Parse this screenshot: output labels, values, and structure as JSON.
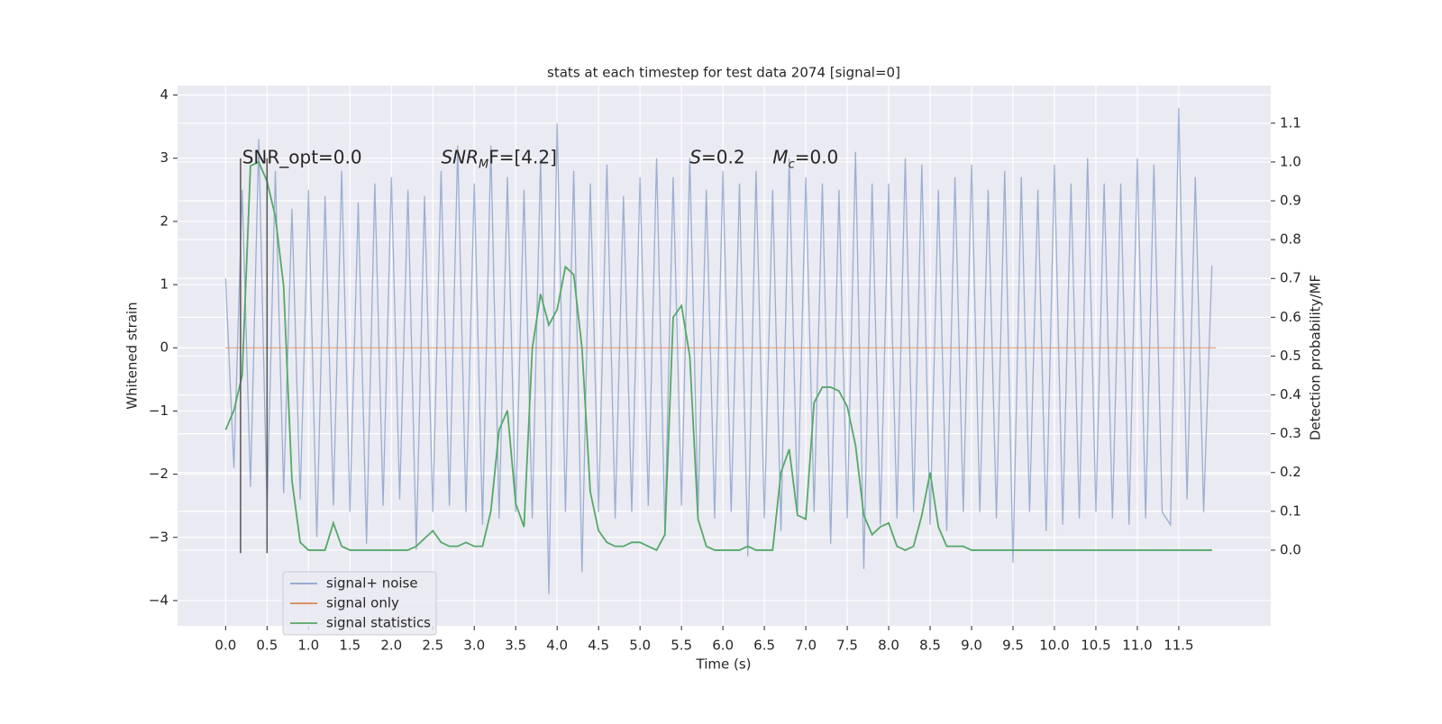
{
  "chart_data": {
    "type": "line",
    "title": "stats at each timestep for test data 2074 [signal=0]",
    "xlabel": "Time (s)",
    "ylabel": "Whitened strain",
    "y2label": "Detection probability/MF",
    "grid": true,
    "legend": "lower left",
    "xlim": [
      -0.58,
      12.61
    ],
    "ylim": [
      -4.4,
      4.15
    ],
    "y2lim": [
      -0.195,
      1.197
    ],
    "xticks": [
      {
        "value": 0,
        "label": "0.0"
      },
      {
        "value": 0.5,
        "label": "0.5"
      },
      {
        "value": 1,
        "label": "1.0"
      },
      {
        "value": 1.5,
        "label": "1.5"
      },
      {
        "value": 2,
        "label": "2.0"
      },
      {
        "value": 2.5,
        "label": "2.5"
      },
      {
        "value": 3,
        "label": "3.0"
      },
      {
        "value": 3.5,
        "label": "3.5"
      },
      {
        "value": 4,
        "label": "4.0"
      },
      {
        "value": 4.5,
        "label": "4.5"
      },
      {
        "value": 5,
        "label": "5.0"
      },
      {
        "value": 5.5,
        "label": "5.5"
      },
      {
        "value": 6,
        "label": "6.0"
      },
      {
        "value": 6.5,
        "label": "6.5"
      },
      {
        "value": 7,
        "label": "7.0"
      },
      {
        "value": 7.5,
        "label": "7.5"
      },
      {
        "value": 8,
        "label": "8.0"
      },
      {
        "value": 8.5,
        "label": "8.5"
      },
      {
        "value": 9,
        "label": "9.0"
      },
      {
        "value": 9.5,
        "label": "9.5"
      },
      {
        "value": 10,
        "label": "10.0"
      },
      {
        "value": 10.5,
        "label": "10.5"
      },
      {
        "value": 11,
        "label": "11.0"
      },
      {
        "value": 11.5,
        "label": "11.5"
      }
    ],
    "yticks": [
      {
        "value": -4,
        "label": "−4"
      },
      {
        "value": -3,
        "label": "−3"
      },
      {
        "value": -2,
        "label": "−2"
      },
      {
        "value": -1,
        "label": "−1"
      },
      0,
      1,
      2,
      3,
      4
    ],
    "y2ticks": [
      {
        "value": 0,
        "label": "0.0"
      },
      {
        "value": 0.1,
        "label": "0.1"
      },
      {
        "value": 0.2,
        "label": "0.2"
      },
      {
        "value": 0.3,
        "label": "0.3"
      },
      {
        "value": 0.4,
        "label": "0.4"
      },
      {
        "value": 0.5,
        "label": "0.5"
      },
      {
        "value": 0.6,
        "label": "0.6"
      },
      {
        "value": 0.7,
        "label": "0.7"
      },
      {
        "value": 0.8,
        "label": "0.8"
      },
      {
        "value": 0.9,
        "label": "0.9"
      },
      {
        "value": 1,
        "label": "1.0"
      },
      {
        "value": 1.1,
        "label": "1.1"
      }
    ],
    "x": [
      0,
      0.1,
      0.2,
      0.3,
      0.4,
      0.5,
      0.6,
      0.7,
      0.8,
      0.9,
      1,
      1.1,
      1.2,
      1.3,
      1.4,
      1.5,
      1.6,
      1.7,
      1.8,
      1.9,
      2,
      2.1,
      2.2,
      2.3,
      2.4,
      2.5,
      2.6,
      2.7,
      2.8,
      2.9,
      3,
      3.1,
      3.2,
      3.3,
      3.4,
      3.5,
      3.6,
      3.7,
      3.8,
      3.9,
      4,
      4.1,
      4.2,
      4.3,
      4.4,
      4.5,
      4.6,
      4.7,
      4.8,
      4.9,
      5,
      5.1,
      5.2,
      5.3,
      5.4,
      5.5,
      5.6,
      5.7,
      5.8,
      5.9,
      6,
      6.1,
      6.2,
      6.3,
      6.4,
      6.5,
      6.6,
      6.7,
      6.8,
      6.9,
      7,
      7.1,
      7.2,
      7.3,
      7.4,
      7.5,
      7.6,
      7.7,
      7.8,
      7.9,
      8,
      8.1,
      8.2,
      8.3,
      8.4,
      8.5,
      8.6,
      8.7,
      8.8,
      8.9,
      9,
      9.1,
      9.2,
      9.3,
      9.4,
      9.5,
      9.6,
      9.7,
      9.8,
      9.9,
      10,
      10.1,
      10.2,
      10.3,
      10.4,
      10.5,
      10.6,
      10.7,
      10.8,
      10.9,
      11,
      11.1,
      11.2,
      11.3,
      11.4,
      11.5,
      11.6,
      11.7,
      11.8,
      11.9
    ],
    "series": [
      {
        "name": "signal+ noise",
        "color": "#4c72b0",
        "values": [
          1.1,
          -1.9,
          2.5,
          -2.2,
          3.3,
          -2.6,
          2.8,
          -2.3,
          2.2,
          -2.4,
          2.5,
          -3.0,
          2.4,
          -2.5,
          2.8,
          -2.6,
          2.3,
          -3.1,
          2.6,
          -2.5,
          2.7,
          -2.4,
          2.5,
          -3.2,
          2.4,
          -2.6,
          2.8,
          -2.5,
          3.2,
          -2.6,
          2.6,
          -2.8,
          3.2,
          -2.7,
          2.7,
          -2.6,
          2.5,
          -2.7,
          3.0,
          -3.9,
          3.55,
          -2.6,
          2.8,
          -3.55,
          2.6,
          -2.6,
          2.9,
          -2.7,
          2.4,
          -2.6,
          2.7,
          -2.5,
          3.0,
          -2.9,
          2.7,
          -2.5,
          3.0,
          -2.6,
          2.5,
          -2.7,
          2.8,
          -2.6,
          2.6,
          -3.3,
          2.8,
          -2.7,
          2.5,
          -2.9,
          3.0,
          -2.6,
          2.7,
          -2.6,
          2.6,
          -3.1,
          2.5,
          -2.7,
          3.1,
          -3.5,
          2.6,
          -2.8,
          2.6,
          -2.7,
          3.0,
          -2.6,
          2.9,
          -2.8,
          2.5,
          -2.9,
          2.7,
          -2.6,
          2.9,
          -2.6,
          2.5,
          -2.7,
          2.8,
          -3.4,
          2.7,
          -2.6,
          2.5,
          -2.9,
          2.9,
          -2.8,
          2.6,
          -2.7,
          3.0,
          -2.6,
          2.6,
          -2.7,
          2.6,
          -2.8,
          3.0,
          -2.7,
          2.9,
          -2.6,
          -2.8,
          3.8,
          -2.4,
          2.7,
          -2.6,
          1.3
        ]
      },
      {
        "name": "signal only",
        "color": "#dd8452",
        "x": [
          0,
          11.95
        ],
        "values": [
          0,
          0
        ]
      },
      {
        "name": "signal statistics",
        "color": "#55a868",
        "axis": "y2",
        "values": [
          0.31,
          0.36,
          0.45,
          0.99,
          1.0,
          0.95,
          0.86,
          0.68,
          0.18,
          0.02,
          0,
          0,
          0,
          0.07,
          0.01,
          0,
          0,
          0,
          0,
          0,
          0,
          0,
          0,
          0.01,
          0.03,
          0.05,
          0.02,
          0.01,
          0.01,
          0.02,
          0.01,
          0.01,
          0.1,
          0.31,
          0.36,
          0.12,
          0.06,
          0.52,
          0.66,
          0.58,
          0.62,
          0.73,
          0.71,
          0.52,
          0.15,
          0.05,
          0.02,
          0.01,
          0.01,
          0.02,
          0.02,
          0.01,
          0,
          0.04,
          0.6,
          0.63,
          0.5,
          0.08,
          0.01,
          0,
          0,
          0,
          0,
          0.01,
          0,
          0,
          0,
          0.2,
          0.26,
          0.09,
          0.08,
          0.38,
          0.42,
          0.42,
          0.41,
          0.37,
          0.27,
          0.09,
          0.04,
          0.06,
          0.07,
          0.01,
          0,
          0.01,
          0.09,
          0.2,
          0.06,
          0.01,
          0.01,
          0.01,
          0,
          0,
          0,
          0,
          0,
          0,
          0,
          0,
          0,
          0,
          0,
          0,
          0,
          0,
          0,
          0,
          0,
          0,
          0,
          0,
          0,
          0,
          0,
          0,
          0,
          0,
          0,
          0,
          0,
          0
        ]
      }
    ],
    "markers": {
      "x": [
        0.18,
        0.5
      ],
      "ymin": -3.25,
      "ymax": 3.0,
      "color": "#555555"
    },
    "annotations": [
      {
        "x": 0.2,
        "y": 3.0,
        "text": "SNR_opt=0.0"
      },
      {
        "x": 2.6,
        "y": 3.0,
        "italic": "SNR",
        "sub": "M",
        "text": "F=[4.2]"
      },
      {
        "x": 5.6,
        "y": 3.0,
        "italic": "S",
        "text": "=0.2"
      },
      {
        "x": 6.6,
        "y": 3.0,
        "italic": "M",
        "sub": "c",
        "text": "=0.0"
      }
    ]
  }
}
